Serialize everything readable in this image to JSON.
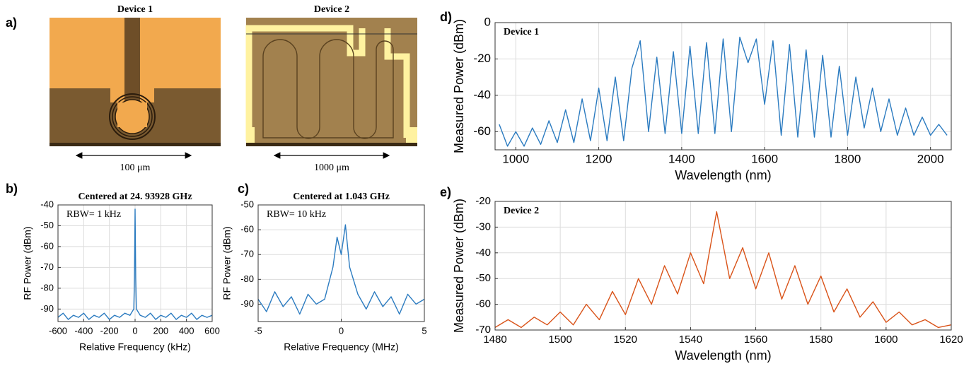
{
  "figure": {
    "panel_labels": [
      "a)",
      "b)",
      "c)",
      "d)",
      "e)"
    ],
    "images": [
      {
        "title": "Device 1",
        "scale": "100 μm"
      },
      {
        "title": "Device 2",
        "scale": "1000 μm"
      }
    ]
  },
  "chart_data": [
    {
      "type": "line",
      "title": "Centered at 24. 93928 GHz",
      "annotation": "RBW= 1 kHz",
      "x_label": "Relative Frequency (kHz)",
      "y_label": "RF Power (dBm)",
      "color": "#2b7bc0",
      "grid": true,
      "xlim": [
        -600,
        600
      ],
      "xticks": [
        -600,
        -400,
        -200,
        0,
        200,
        400,
        600
      ],
      "ylim": [
        -96,
        -40
      ],
      "yticks": [
        -40,
        -50,
        -60,
        -70,
        -80,
        -90
      ],
      "x": [
        -600,
        -560,
        -520,
        -480,
        -440,
        -400,
        -360,
        -320,
        -280,
        -240,
        -200,
        -160,
        -120,
        -80,
        -40,
        -10,
        -5,
        0,
        5,
        10,
        40,
        80,
        120,
        160,
        200,
        240,
        280,
        320,
        360,
        400,
        440,
        480,
        520,
        560,
        600
      ],
      "values": [
        -94,
        -92,
        -95,
        -93,
        -94,
        -92,
        -95,
        -93,
        -94,
        -92,
        -95,
        -93,
        -94,
        -92,
        -93,
        -90,
        -75,
        -42,
        -75,
        -90,
        -93,
        -94,
        -92,
        -95,
        -93,
        -94,
        -92,
        -95,
        -93,
        -94,
        -92,
        -95,
        -93,
        -94,
        -93
      ]
    },
    {
      "type": "line",
      "title": "Centered at 1.043 GHz",
      "annotation": "RBW= 10 kHz",
      "x_label": "Relative Frequency (MHz)",
      "y_label": "RF Power (dBm)",
      "color": "#2b7bc0",
      "grid": true,
      "xlim": [
        -5,
        5
      ],
      "xticks": [
        -5,
        0,
        5
      ],
      "ylim": [
        -97,
        -50
      ],
      "yticks": [
        -50,
        -60,
        -70,
        -80,
        -90
      ],
      "x": [
        -5,
        -4.5,
        -4,
        -3.5,
        -3,
        -2.5,
        -2,
        -1.5,
        -1,
        -0.5,
        -0.25,
        0,
        0.25,
        0.5,
        1,
        1.5,
        2,
        2.5,
        3,
        3.5,
        4,
        4.5,
        5
      ],
      "values": [
        -88,
        -93,
        -85,
        -91,
        -87,
        -94,
        -86,
        -90,
        -88,
        -75,
        -63,
        -70,
        -58,
        -75,
        -86,
        -92,
        -85,
        -91,
        -87,
        -94,
        -86,
        -90,
        -88
      ]
    },
    {
      "type": "line",
      "annotation": "Device 1",
      "x_label": "Wavelength (nm)",
      "y_label": "Measured Power (dBm)",
      "color": "#2b7bc0",
      "grid": true,
      "xlim": [
        950,
        2050
      ],
      "xticks": [
        1000,
        1200,
        1400,
        1600,
        1800,
        2000
      ],
      "ylim": [
        -70,
        0
      ],
      "yticks": [
        0,
        -20,
        -40,
        -60
      ],
      "x": [
        960,
        980,
        1000,
        1020,
        1040,
        1060,
        1080,
        1100,
        1120,
        1140,
        1160,
        1180,
        1200,
        1220,
        1240,
        1260,
        1280,
        1300,
        1320,
        1340,
        1360,
        1380,
        1400,
        1420,
        1440,
        1460,
        1480,
        1500,
        1520,
        1540,
        1560,
        1580,
        1600,
        1620,
        1640,
        1660,
        1680,
        1700,
        1720,
        1740,
        1760,
        1780,
        1800,
        1820,
        1840,
        1860,
        1880,
        1900,
        1920,
        1940,
        1960,
        1980,
        2000,
        2020,
        2040
      ],
      "values": [
        -56,
        -68,
        -60,
        -68,
        -58,
        -67,
        -54,
        -66,
        -48,
        -66,
        -42,
        -65,
        -36,
        -65,
        -30,
        -65,
        -25,
        -10,
        -60,
        -19,
        -61,
        -16,
        -61,
        -13,
        -61,
        -11,
        -61,
        -9,
        -60,
        -8,
        -22,
        -9,
        -45,
        -10,
        -62,
        -12,
        -63,
        -15,
        -63,
        -18,
        -63,
        -24,
        -62,
        -30,
        -58,
        -36,
        -60,
        -42,
        -62,
        -47,
        -62,
        -52,
        -62,
        -56,
        -62
      ]
    },
    {
      "type": "line",
      "annotation": "Device 2",
      "x_label": "Wavelength (nm)",
      "y_label": "Measured Power (dBm)",
      "color": "#d95319",
      "grid": true,
      "xlim": [
        1480,
        1620
      ],
      "xticks": [
        1480,
        1500,
        1520,
        1540,
        1560,
        1580,
        1600,
        1620
      ],
      "ylim": [
        -70,
        -20
      ],
      "yticks": [
        -20,
        -30,
        -40,
        -50,
        -60,
        -70
      ],
      "x": [
        1480,
        1484,
        1488,
        1492,
        1496,
        1500,
        1504,
        1508,
        1512,
        1516,
        1520,
        1524,
        1528,
        1532,
        1536,
        1540,
        1544,
        1548,
        1552,
        1556,
        1560,
        1564,
        1568,
        1572,
        1576,
        1580,
        1584,
        1588,
        1592,
        1596,
        1600,
        1604,
        1608,
        1612,
        1616,
        1620
      ],
      "values": [
        -69,
        -66,
        -69,
        -65,
        -68,
        -63,
        -68,
        -60,
        -66,
        -55,
        -64,
        -50,
        -60,
        -45,
        -56,
        -40,
        -52,
        -24,
        -50,
        -38,
        -54,
        -40,
        -58,
        -45,
        -60,
        -49,
        -63,
        -54,
        -65,
        -59,
        -67,
        -63,
        -68,
        -66,
        -69,
        -68
      ]
    }
  ]
}
